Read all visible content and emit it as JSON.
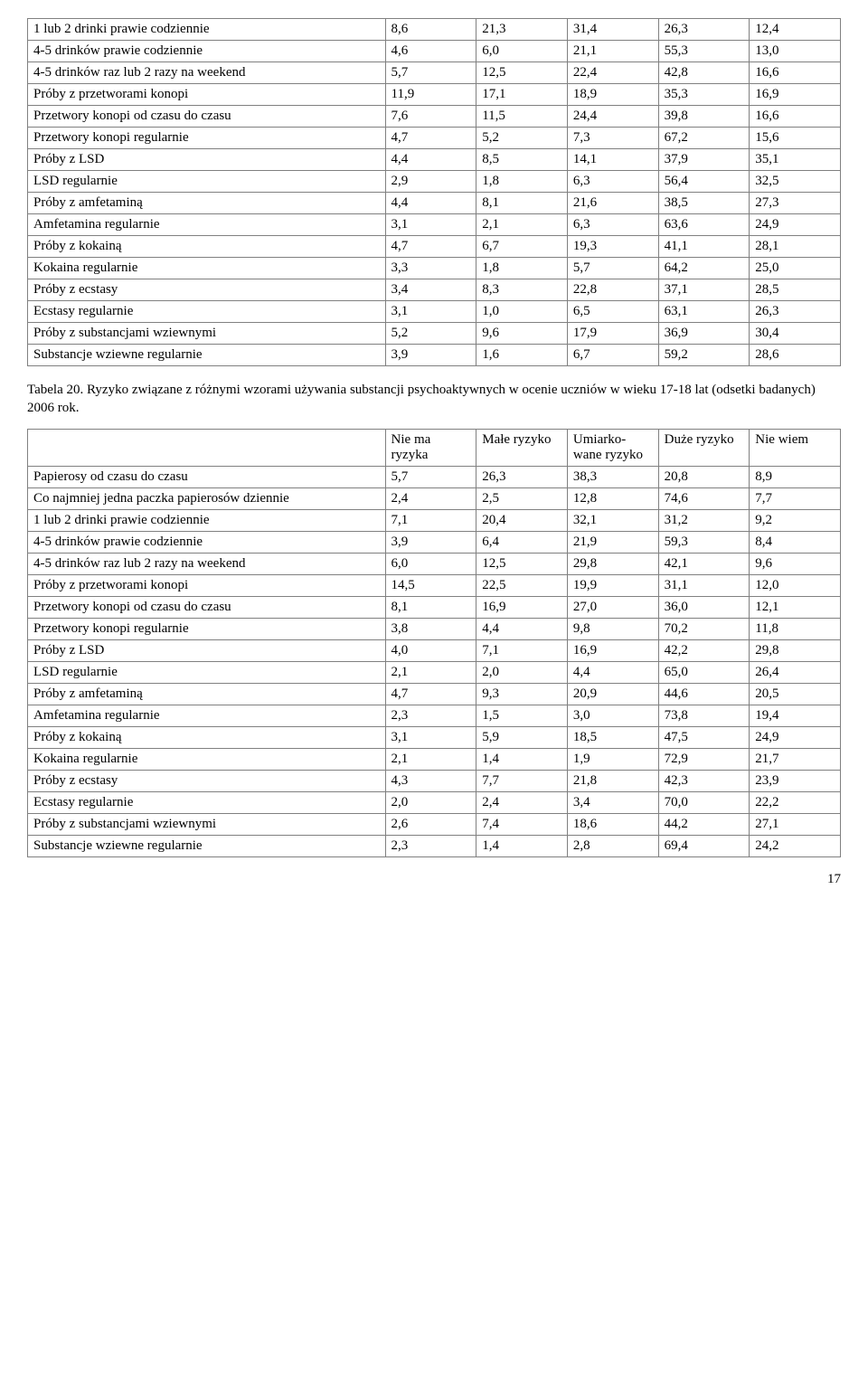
{
  "table1": {
    "rows": [
      [
        "1 lub 2 drinki prawie codziennie",
        "8,6",
        "21,3",
        "31,4",
        "26,3",
        "12,4"
      ],
      [
        "4-5 drinków prawie codziennie",
        "4,6",
        "6,0",
        "21,1",
        "55,3",
        "13,0"
      ],
      [
        "4-5 drinków raz lub 2 razy na weekend",
        "5,7",
        "12,5",
        "22,4",
        "42,8",
        "16,6"
      ],
      [
        "Próby z przetworami konopi",
        "11,9",
        "17,1",
        "18,9",
        "35,3",
        "16,9"
      ],
      [
        "Przetwory konopi od czasu do czasu",
        "7,6",
        "11,5",
        "24,4",
        "39,8",
        "16,6"
      ],
      [
        "Przetwory konopi regularnie",
        "4,7",
        "5,2",
        "7,3",
        "67,2",
        "15,6"
      ],
      [
        "Próby z LSD",
        "4,4",
        "8,5",
        "14,1",
        "37,9",
        "35,1"
      ],
      [
        "LSD regularnie",
        "2,9",
        "1,8",
        "6,3",
        "56,4",
        "32,5"
      ],
      [
        "Próby z amfetaminą",
        "4,4",
        "8,1",
        "21,6",
        "38,5",
        "27,3"
      ],
      [
        "Amfetamina regularnie",
        "3,1",
        "2,1",
        "6,3",
        "63,6",
        "24,9"
      ],
      [
        "Próby z kokainą",
        "4,7",
        "6,7",
        "19,3",
        "41,1",
        "28,1"
      ],
      [
        "Kokaina regularnie",
        "3,3",
        "1,8",
        "5,7",
        "64,2",
        "25,0"
      ],
      [
        "Próby z ecstasy",
        "3,4",
        "8,3",
        "22,8",
        "37,1",
        "28,5"
      ],
      [
        "Ecstasy regularnie",
        "3,1",
        "1,0",
        "6,5",
        "63,1",
        "26,3"
      ],
      [
        "Próby z substancjami wziewnymi",
        "5,2",
        "9,6",
        "17,9",
        "36,9",
        "30,4"
      ],
      [
        "Substancje wziewne regularnie",
        "3,9",
        "1,6",
        "6,7",
        "59,2",
        "28,6"
      ]
    ]
  },
  "caption": " Tabela 20. Ryzyko związane z różnymi wzorami używania substancji psychoaktywnych w ocenie uczniów w wieku 17-18 lat (odsetki badanych) 2006 rok.",
  "table2": {
    "headers": [
      "",
      "Nie ma ryzyka",
      "Małe ryzyko",
      "Umiarko-wane ryzyko",
      "Duże ryzyko",
      "Nie wiem"
    ],
    "rows": [
      [
        "Papierosy od czasu do czasu",
        "5,7",
        "26,3",
        "38,3",
        "20,8",
        "8,9"
      ],
      [
        "Co najmniej jedna paczka papierosów dziennie",
        "2,4",
        "2,5",
        "12,8",
        "74,6",
        "7,7"
      ],
      [
        "1 lub 2 drinki prawie codziennie",
        "7,1",
        "20,4",
        "32,1",
        "31,2",
        "9,2"
      ],
      [
        "4-5 drinków prawie codziennie",
        "3,9",
        "6,4",
        "21,9",
        "59,3",
        "8,4"
      ],
      [
        "4-5 drinków raz lub 2 razy na weekend",
        "6,0",
        "12,5",
        "29,8",
        "42,1",
        "9,6"
      ],
      [
        "Próby z przetworami konopi",
        "14,5",
        "22,5",
        "19,9",
        "31,1",
        "12,0"
      ],
      [
        "Przetwory konopi od czasu do czasu",
        "8,1",
        "16,9",
        "27,0",
        "36,0",
        "12,1"
      ],
      [
        "Przetwory konopi regularnie",
        "3,8",
        "4,4",
        "9,8",
        "70,2",
        "11,8"
      ],
      [
        "Próby z LSD",
        "4,0",
        "7,1",
        "16,9",
        "42,2",
        "29,8"
      ],
      [
        "LSD regularnie",
        "2,1",
        "2,0",
        "4,4",
        "65,0",
        "26,4"
      ],
      [
        "Próby z amfetaminą",
        "4,7",
        "9,3",
        "20,9",
        "44,6",
        "20,5"
      ],
      [
        "Amfetamina regularnie",
        "2,3",
        "1,5",
        "3,0",
        "73,8",
        "19,4"
      ],
      [
        "Próby z kokainą",
        "3,1",
        "5,9",
        "18,5",
        "47,5",
        "24,9"
      ],
      [
        "Kokaina regularnie",
        "2,1",
        "1,4",
        "1,9",
        "72,9",
        "21,7"
      ],
      [
        "Próby z ecstasy",
        "4,3",
        "7,7",
        "21,8",
        "42,3",
        "23,9"
      ],
      [
        "Ecstasy regularnie",
        "2,0",
        "2,4",
        "3,4",
        "70,0",
        "22,2"
      ],
      [
        "Próby z substancjami wziewnymi",
        "2,6",
        "7,4",
        "18,6",
        "44,2",
        "27,1"
      ],
      [
        "Substancje wziewne regularnie",
        "2,3",
        "1,4",
        "2,8",
        "69,4",
        "24,2"
      ]
    ]
  },
  "page_number": "17"
}
